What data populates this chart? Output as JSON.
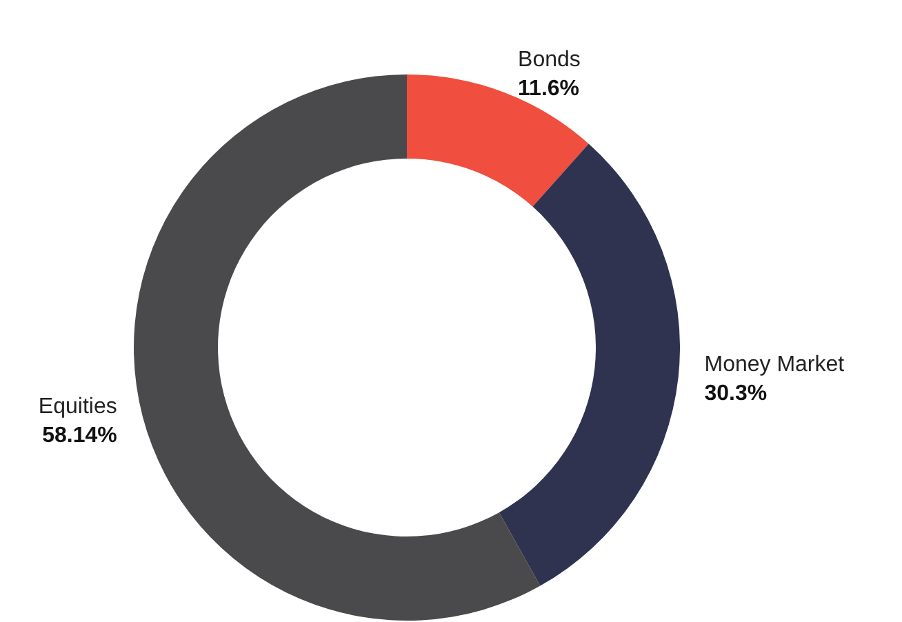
{
  "chart_data": {
    "type": "donut",
    "categories": [
      "Bonds",
      "Money Market",
      "Equities"
    ],
    "values": [
      11.6,
      30.3,
      58.14
    ],
    "colors": [
      "#f04e3e",
      "#303350",
      "#4a4a4c"
    ],
    "value_labels": [
      "11.6%",
      "30.3%",
      "58.14%"
    ],
    "legend": false
  }
}
